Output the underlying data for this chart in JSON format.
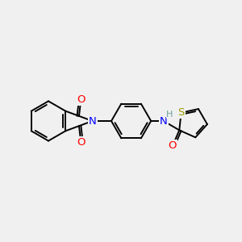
{
  "bg_color": "#f0f0f0",
  "bond_color": "#000000",
  "bond_width": 1.4,
  "atom_colors": {
    "N": "#0000ff",
    "O": "#ff0000",
    "S": "#999900",
    "H": "#6fa0a0",
    "C": "#000000"
  },
  "font_size": 9.5,
  "canvas_xlim": [
    0,
    10
  ],
  "canvas_ylim": [
    0,
    10
  ],
  "figsize": [
    3.0,
    3.0
  ],
  "dpi": 100
}
